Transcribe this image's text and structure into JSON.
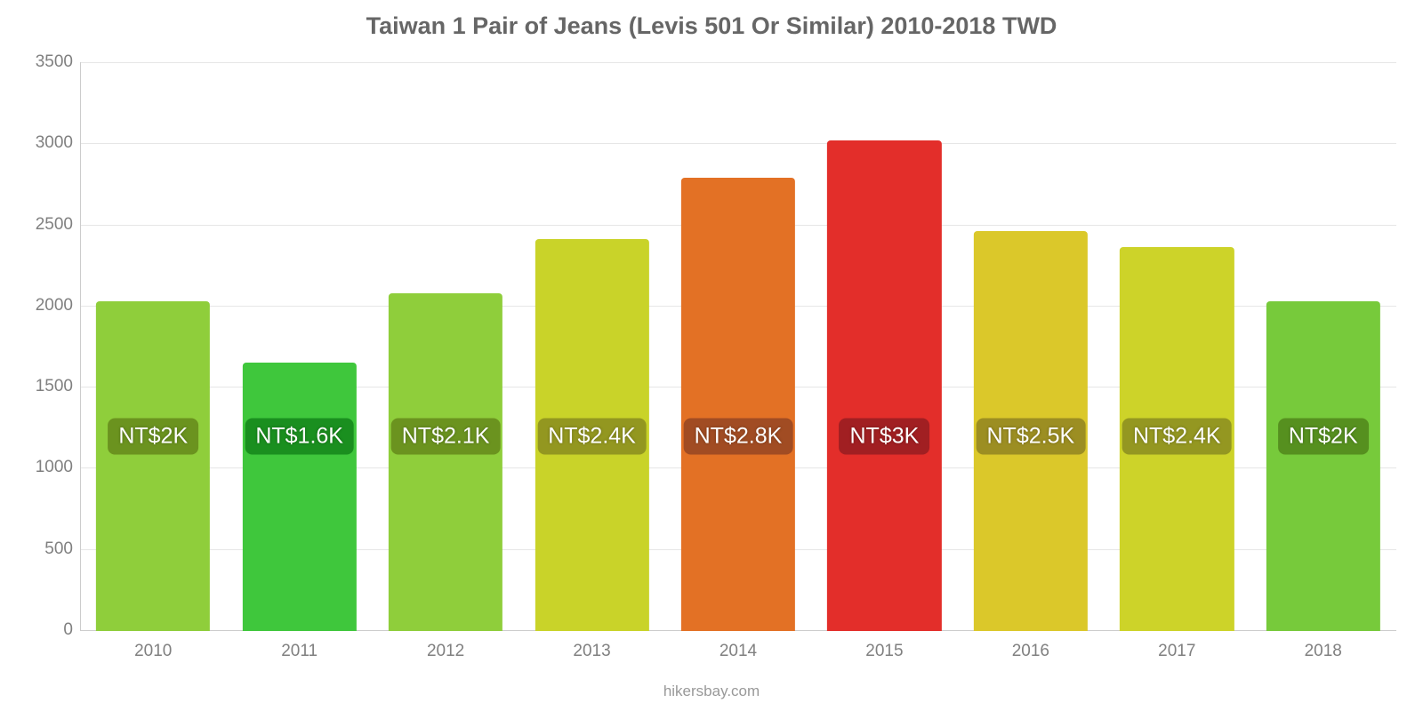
{
  "chart": {
    "type": "bar",
    "title": "Taiwan 1 Pair of Jeans (Levis 501 Or Similar) 2010-2018 TWD",
    "title_fontsize": 27,
    "title_color": "#666666",
    "footer": "hikersbay.com",
    "footer_color": "#999999",
    "background_color": "#ffffff",
    "axis_line_color": "#cccccc",
    "grid_color": "#e6e6e6",
    "tick_label_color": "#808080",
    "ylim_min": 0,
    "ylim_max": 3500,
    "ytick_step": 500,
    "yticks": [
      "0",
      "500",
      "1000",
      "1500",
      "2000",
      "2500",
      "3000",
      "3500"
    ],
    "bar_width_pct": 78,
    "label_fontsize": 25,
    "categories": [
      "2010",
      "2011",
      "2012",
      "2013",
      "2014",
      "2015",
      "2016",
      "2017",
      "2018"
    ],
    "values": [
      2030,
      1650,
      2080,
      2410,
      2790,
      3020,
      2460,
      2360,
      2030
    ],
    "value_labels": [
      "NT$2K",
      "NT$1.6K",
      "NT$2.1K",
      "NT$2.4K",
      "NT$2.8K",
      "NT$3K",
      "NT$2.5K",
      "NT$2.4K",
      "NT$2K"
    ],
    "bar_colors": [
      "#8fce3b",
      "#3fc73c",
      "#8fce3b",
      "#c9d329",
      "#e37125",
      "#e32e2a",
      "#dbc82a",
      "#cdd329",
      "#77ca3b"
    ],
    "label_bg_colors": [
      "#6b931f",
      "#1a8f1f",
      "#6b931f",
      "#939720",
      "#a14c23",
      "#a11f22",
      "#9c8e22",
      "#949721",
      "#56901f"
    ],
    "label_vcenter_value": 1200
  }
}
